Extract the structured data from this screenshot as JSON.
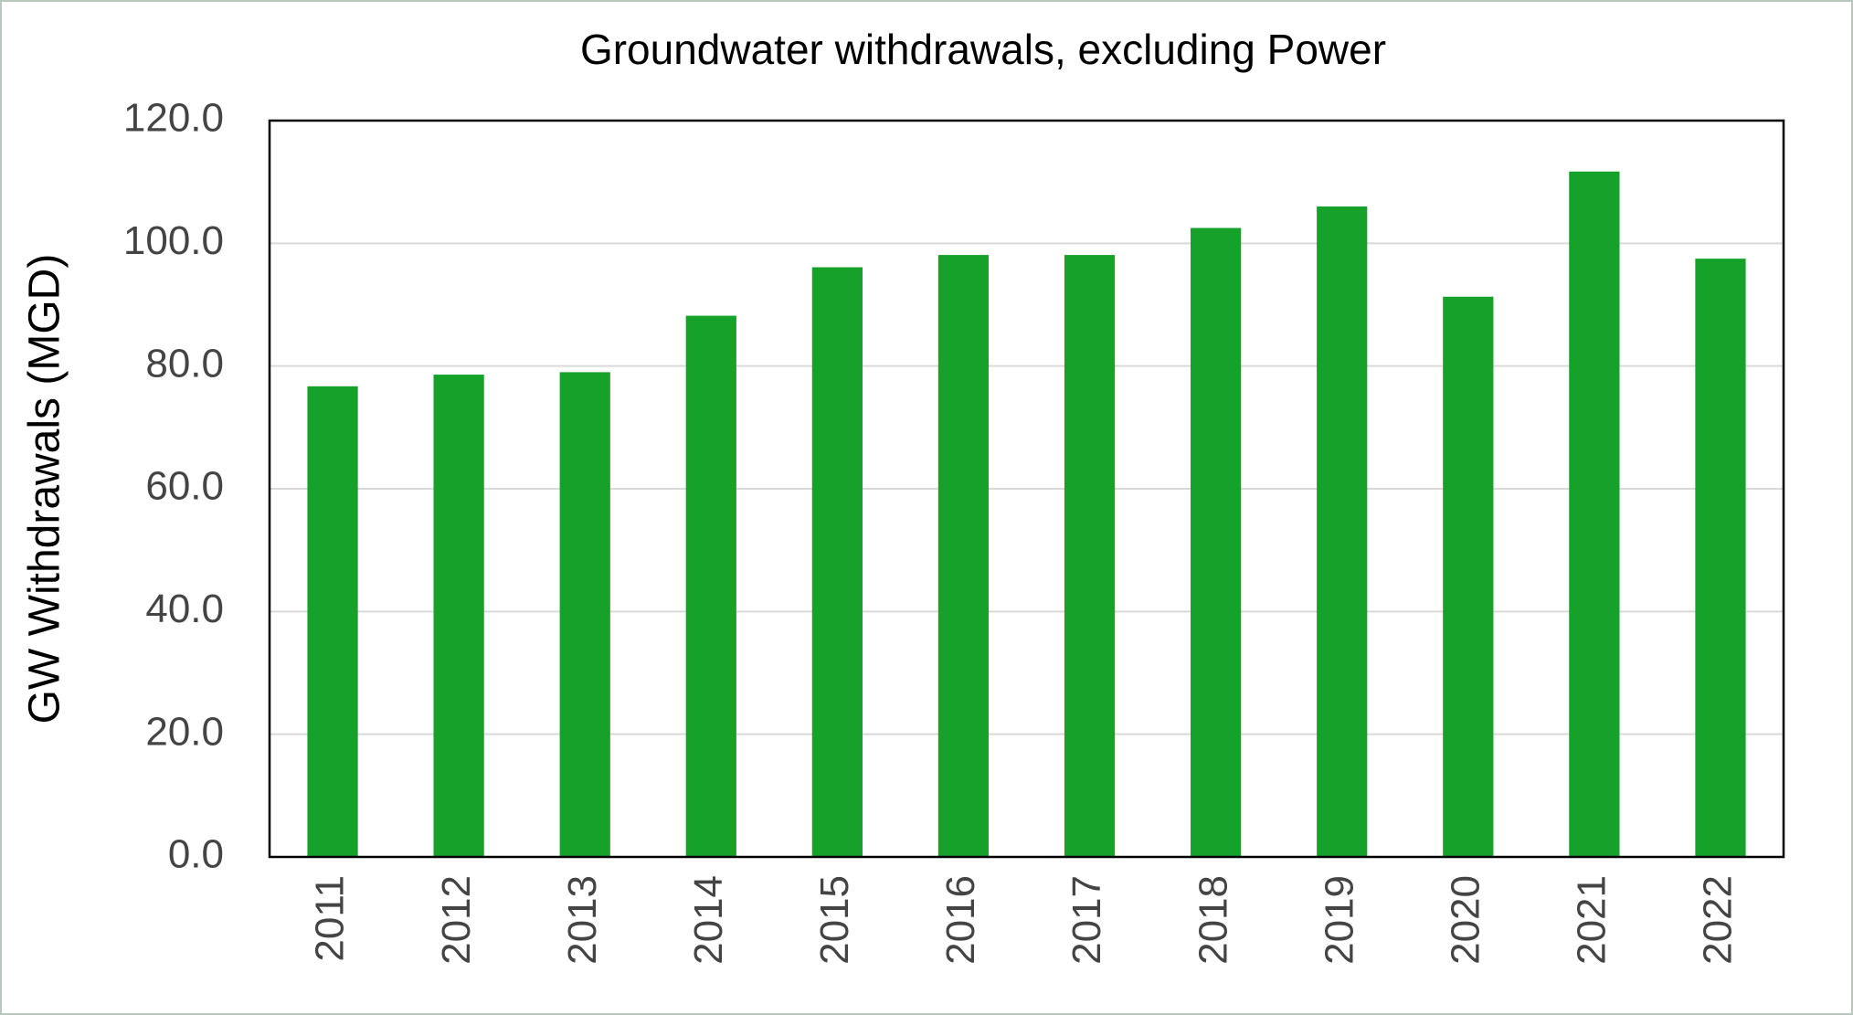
{
  "chart_data": {
    "type": "bar",
    "title": "Groundwater withdrawals, excluding Power",
    "y_label": "GW Withdrawals (MGD)",
    "categories": [
      "2011",
      "2012",
      "2013",
      "2014",
      "2015",
      "2016",
      "2017",
      "2018",
      "2019",
      "2020",
      "2021",
      "2022"
    ],
    "values": [
      76.7,
      78.6,
      79.0,
      88.2,
      96.1,
      98.1,
      98.1,
      102.5,
      106.0,
      91.3,
      111.7,
      97.5
    ],
    "color": "#16a22a",
    "ylim": [
      0,
      120
    ],
    "yticks": [
      {
        "value": 0,
        "label": "0.0"
      },
      {
        "value": 20,
        "label": "20.0"
      },
      {
        "value": 40,
        "label": "40.0"
      },
      {
        "value": 60,
        "label": "60.0"
      },
      {
        "value": 80,
        "label": "80.0"
      },
      {
        "value": 100,
        "label": "100.0"
      },
      {
        "value": 120,
        "label": "120.0"
      }
    ],
    "grid": true
  }
}
